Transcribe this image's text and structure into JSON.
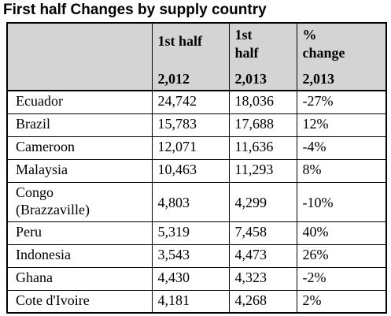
{
  "title": "First half Changes by supply country",
  "header": {
    "col1": {
      "label": "1st half",
      "year": "2,012"
    },
    "col2": {
      "label_line1": "1st",
      "label_line2": "half",
      "year": "2,013"
    },
    "col3": {
      "label_line1": "%",
      "label_line2": "change",
      "year": "2,013"
    }
  },
  "rows": [
    {
      "country": "Ecuador",
      "h2012": "24,742",
      "h2013": "18,036",
      "change": "-27%"
    },
    {
      "country": "Brazil",
      "h2012": "15,783",
      "h2013": "17,688",
      "change": "12%"
    },
    {
      "country": "Cameroon",
      "h2012": "12,071",
      "h2013": "11,636",
      "change": "-4%"
    },
    {
      "country": "Malaysia",
      "h2012": "10,463",
      "h2013": "11,293",
      "change": "8%"
    },
    {
      "country": "Congo",
      "country_line2": "(Brazzaville)",
      "h2012": "4,803",
      "h2013": "4,299",
      "change": "-10%"
    },
    {
      "country": "Peru",
      "h2012": "5,319",
      "h2013": "7,458",
      "change": "40%"
    },
    {
      "country": "Indonesia",
      "h2012": "3,543",
      "h2013": "4,473",
      "change": "26%"
    },
    {
      "country": "Ghana",
      "h2012": "4,430",
      "h2013": "4,323",
      "change": "-2%"
    },
    {
      "country": "Cote d'Ivoire",
      "h2012": "4,181",
      "h2013": "4,268",
      "change": "2%"
    }
  ]
}
